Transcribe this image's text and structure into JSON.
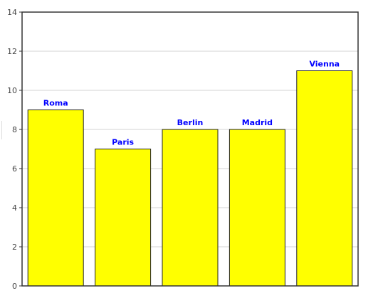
{
  "chart_data": {
    "type": "bar",
    "categories": [
      "Roma",
      "Paris",
      "Berlin",
      "Madrid",
      "Vienna"
    ],
    "values": [
      9,
      7,
      8,
      8,
      11
    ],
    "ylim": [
      0,
      14
    ],
    "yticks": [
      0,
      2,
      4,
      6,
      8,
      10,
      12,
      14
    ],
    "grid": true,
    "bar_color": "#ffff00",
    "bar_border_color": "#222222",
    "label_color": "#0000ff",
    "axis_color": "#333333",
    "grid_color": "#d3d3d3",
    "data_labels": "category names above bars"
  }
}
